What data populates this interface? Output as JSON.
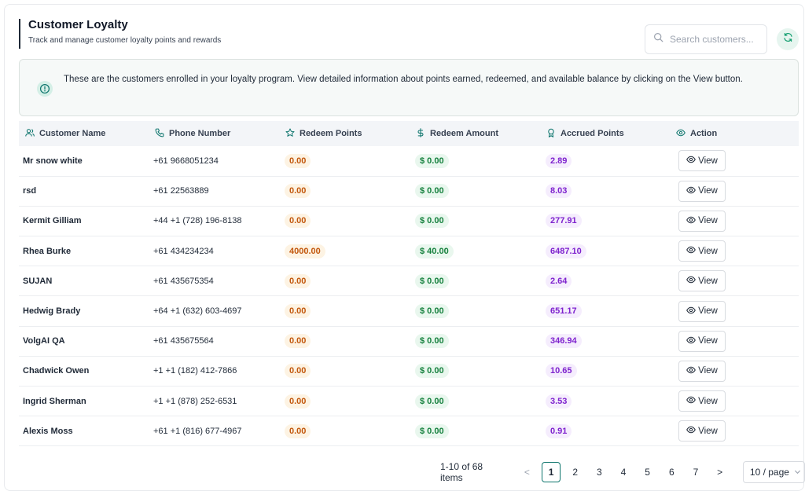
{
  "header": {
    "title": "Customer Loyalty",
    "subtitle": "Track and manage customer loyalty points and rewards"
  },
  "search": {
    "placeholder": "Search customers..."
  },
  "info": {
    "text": "These are the customers enrolled in your loyalty program. View detailed information about points earned, redeemed, and available balance by clicking on the View button."
  },
  "table": {
    "columns": [
      "Customer Name",
      "Phone Number",
      "Redeem Points",
      "Redeem Amount",
      "Accrued Points",
      "Action"
    ],
    "rows": [
      {
        "name": "Mr snow white",
        "phone": "+61 9668051234",
        "redeem_points": "0.00",
        "redeem_amount": "$ 0.00",
        "accrued_points": "2.89",
        "action": "View"
      },
      {
        "name": "rsd",
        "phone": "+61 22563889",
        "redeem_points": "0.00",
        "redeem_amount": "$ 0.00",
        "accrued_points": "8.03",
        "action": "View"
      },
      {
        "name": "Kermit Gilliam",
        "phone": "+44 +1 (728) 196-8138",
        "redeem_points": "0.00",
        "redeem_amount": "$ 0.00",
        "accrued_points": "277.91",
        "action": "View"
      },
      {
        "name": "Rhea Burke",
        "phone": "+61 434234234",
        "redeem_points": "4000.00",
        "redeem_amount": "$ 40.00",
        "accrued_points": "6487.10",
        "action": "View"
      },
      {
        "name": "SUJAN",
        "phone": "+61 435675354",
        "redeem_points": "0.00",
        "redeem_amount": "$ 0.00",
        "accrued_points": "2.64",
        "action": "View"
      },
      {
        "name": "Hedwig Brady",
        "phone": "+64 +1 (632) 603-4697",
        "redeem_points": "0.00",
        "redeem_amount": "$ 0.00",
        "accrued_points": "651.17",
        "action": "View"
      },
      {
        "name": "VolgAI QA",
        "phone": "+61 435675564",
        "redeem_points": "0.00",
        "redeem_amount": "$ 0.00",
        "accrued_points": "346.94",
        "action": "View"
      },
      {
        "name": "Chadwick Owen",
        "phone": "+1 +1 (182) 412-7866",
        "redeem_points": "0.00",
        "redeem_amount": "$ 0.00",
        "accrued_points": "10.65",
        "action": "View"
      },
      {
        "name": "Ingrid Sherman",
        "phone": "+1 +1 (878) 252-6531",
        "redeem_points": "0.00",
        "redeem_amount": "$ 0.00",
        "accrued_points": "3.53",
        "action": "View"
      },
      {
        "name": "Alexis Moss",
        "phone": "+61 +1 (816) 677-4967",
        "redeem_points": "0.00",
        "redeem_amount": "$ 0.00",
        "accrued_points": "0.91",
        "action": "View"
      }
    ]
  },
  "pagination": {
    "range": "1-10 of 68 items",
    "prev": "<",
    "next": ">",
    "pages": [
      "1",
      "2",
      "3",
      "4",
      "5",
      "6",
      "7"
    ],
    "current": "1",
    "page_size": "10 / page"
  },
  "colors": {
    "accent": "#0f766e",
    "redeem_points": "#c2570c",
    "redeem_amount": "#15803d",
    "accrued_points": "#7e22ce"
  },
  "icons": {
    "search": "search-icon",
    "refresh": "refresh-icon",
    "info": "info-icon",
    "customer": "user-icon",
    "phone": "phone-icon",
    "redeem_points": "star-icon",
    "redeem_amount": "dollar-icon",
    "accrued_points": "award-icon",
    "action": "eye-icon",
    "page_size": "chevron-down-icon"
  }
}
